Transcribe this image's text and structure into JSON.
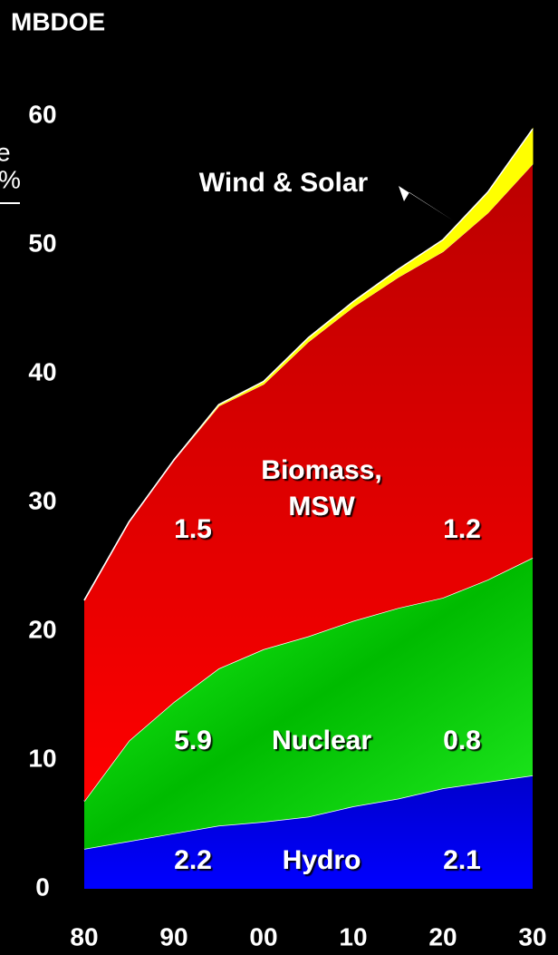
{
  "chart_data": {
    "type": "stacked_area",
    "ylabel": "MBDOE",
    "x": [
      1980,
      1985,
      1990,
      1995,
      2000,
      2005,
      2010,
      2015,
      2020,
      2025,
      2030
    ],
    "series": [
      {
        "name": "Hydro",
        "color": "#0000ee",
        "values": [
          3.1,
          3.7,
          4.3,
          4.9,
          5.2,
          5.6,
          6.4,
          7.0,
          7.8,
          8.3,
          8.8
        ]
      },
      {
        "name": "Nuclear",
        "color": "#00dd00",
        "values": [
          3.7,
          7.8,
          10.2,
          12.2,
          13.4,
          14.0,
          14.4,
          14.8,
          14.8,
          15.7,
          16.9
        ]
      },
      {
        "name": "Biomass, MSW",
        "color": "#ee0000",
        "values": [
          15.6,
          17.0,
          18.8,
          20.4,
          20.6,
          22.9,
          24.4,
          25.7,
          26.9,
          28.5,
          30.6
        ]
      },
      {
        "name": "Wind & Solar",
        "color": "#ffff00",
        "values": [
          0,
          0,
          0,
          0.1,
          0.2,
          0.3,
          0.4,
          0.6,
          0.9,
          1.6,
          2.7
        ]
      }
    ],
    "xlim": [
      1980,
      2030
    ],
    "xticks": [
      {
        "value": 1980,
        "label": "80"
      },
      {
        "value": 1990,
        "label": "90"
      },
      {
        "value": 2000,
        "label": "00"
      },
      {
        "value": 2010,
        "label": "10"
      },
      {
        "value": 2020,
        "label": "20"
      },
      {
        "value": 2030,
        "label": "30"
      }
    ],
    "ylim": [
      0,
      60
    ],
    "yticks": [
      0,
      10,
      20,
      30,
      40,
      50,
      60
    ],
    "annotations": [
      "1.5",
      "1.2",
      "5.9",
      "0.8",
      "2.2",
      "2.1",
      "e",
      "%"
    ]
  }
}
